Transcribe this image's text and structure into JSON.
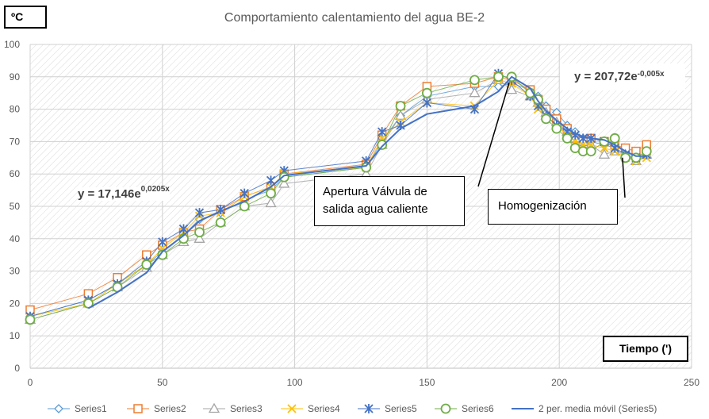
{
  "chart_data": {
    "type": "scatter",
    "title": "Comportamiento calentamiento del agua BE-2",
    "ylabel": "ºC",
    "xlabel": "Tiempo (')",
    "xlim": [
      0,
      250
    ],
    "ylim": [
      0,
      100
    ],
    "xticks": [
      0,
      50,
      100,
      150,
      200,
      250
    ],
    "yticks": [
      0,
      10,
      20,
      30,
      40,
      50,
      60,
      70,
      80,
      90,
      100
    ],
    "grid": true,
    "legend_position": "bottom",
    "x": [
      0,
      22,
      33,
      44,
      50,
      58,
      64,
      72,
      81,
      91,
      96,
      127,
      133,
      140,
      150,
      168,
      177,
      182,
      189,
      192,
      195,
      199,
      203,
      206,
      209,
      212,
      217,
      221,
      225,
      229,
      233
    ],
    "series": [
      {
        "name": "Series1",
        "color": "#5b9bd5",
        "marker": "diamond",
        "values": [
          16,
          21,
          26,
          32,
          36,
          41,
          46,
          48,
          52,
          55,
          59,
          62,
          70,
          78,
          84,
          87,
          87,
          88,
          86,
          84,
          81,
          79,
          75,
          73,
          71,
          70,
          69,
          68,
          66,
          65,
          66
        ]
      },
      {
        "name": "Series2",
        "color": "#ed7d31",
        "marker": "square",
        "values": [
          18,
          23,
          28,
          35,
          38,
          42,
          43,
          49,
          53,
          56,
          60,
          63,
          72,
          81,
          87,
          88,
          90,
          89,
          86,
          83,
          80,
          77,
          74,
          71,
          70,
          71,
          70,
          69,
          68,
          67,
          69
        ]
      },
      {
        "name": "Series3",
        "color": "#a5a5a5",
        "marker": "triangle",
        "values": [
          15,
          20,
          25,
          31,
          35,
          39,
          40,
          45,
          50,
          51,
          57,
          60,
          69,
          78,
          83,
          85,
          89,
          86,
          84,
          82,
          79,
          76,
          73,
          71,
          70,
          69,
          66,
          67,
          66,
          64,
          66
        ]
      },
      {
        "name": "Series4",
        "color": "#ffc000",
        "marker": "x",
        "values": [
          16,
          20,
          26,
          32,
          37,
          42,
          47,
          48,
          53,
          56,
          60,
          62,
          71,
          76,
          82,
          81,
          89,
          88,
          84,
          80,
          78,
          75,
          72,
          70,
          69,
          69,
          68,
          67,
          65,
          64,
          65
        ]
      },
      {
        "name": "Series5",
        "color": "#4472c4",
        "marker": "star",
        "values": [
          16,
          21,
          26,
          33,
          39,
          43,
          48,
          49,
          54,
          58,
          61,
          64,
          73,
          75,
          82,
          80,
          91,
          89,
          84,
          81,
          78,
          75,
          73,
          72,
          71,
          71,
          70,
          68,
          66,
          65,
          66
        ]
      },
      {
        "name": "Series6",
        "color": "#70ad47",
        "marker": "circle",
        "values": [
          15,
          20,
          25,
          32,
          35,
          40,
          42,
          45,
          50,
          54,
          59,
          62,
          69,
          81,
          85,
          89,
          90,
          90,
          85,
          83,
          77,
          74,
          71,
          68,
          67,
          67,
          70,
          71,
          65,
          65,
          67
        ]
      },
      {
        "name": "2 per. media móvil (Series5)",
        "color": "#4472c4",
        "marker": "none",
        "type": "line",
        "x": [
          22,
          33,
          44,
          50,
          58,
          64,
          72,
          81,
          91,
          96,
          127,
          133,
          140,
          150,
          168,
          177,
          182,
          189,
          192,
          195,
          199,
          203,
          206,
          209,
          212,
          217,
          221,
          225,
          229,
          233
        ],
        "values": [
          18.5,
          23.5,
          29.5,
          36,
          41,
          45.5,
          48.5,
          51.5,
          56,
          59.5,
          62.5,
          68.5,
          74,
          78.5,
          81,
          85.5,
          90,
          86.5,
          82.5,
          79.5,
          76.5,
          74,
          72.5,
          71.5,
          71,
          70.5,
          69,
          67,
          65.5,
          65.5
        ]
      }
    ],
    "annotations": [
      {
        "text": "Apertura Válvula de salida agua caliente",
        "line1": "Apertura Válvula de",
        "line2": "salida agua caliente",
        "point_to": [
          181,
          89
        ]
      },
      {
        "text": "Homogenización",
        "point_to": [
          223,
          66
        ]
      }
    ],
    "trendline_labels": [
      {
        "base": "y = 17,146e",
        "exponent": "0,0205x"
      },
      {
        "base": "y = 207,72e",
        "exponent": "-0,005x"
      }
    ]
  }
}
